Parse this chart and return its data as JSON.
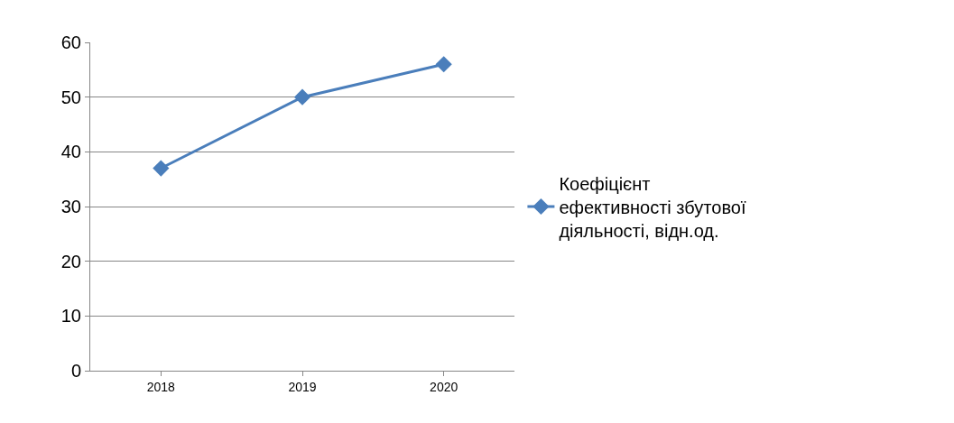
{
  "chart_data": {
    "type": "line",
    "categories": [
      "2018",
      "2019",
      "2020"
    ],
    "series": [
      {
        "name": "Коефіцієнт ефективності збутової діяльності, відн.од.",
        "color": "#4a7ebb",
        "values": [
          37,
          50,
          56
        ]
      }
    ],
    "ylim": [
      0,
      60
    ],
    "yticks": [
      0,
      10,
      20,
      30,
      40,
      50,
      60
    ],
    "grid": "y",
    "legend": "right",
    "marker": "diamond",
    "line_style": "solid"
  }
}
